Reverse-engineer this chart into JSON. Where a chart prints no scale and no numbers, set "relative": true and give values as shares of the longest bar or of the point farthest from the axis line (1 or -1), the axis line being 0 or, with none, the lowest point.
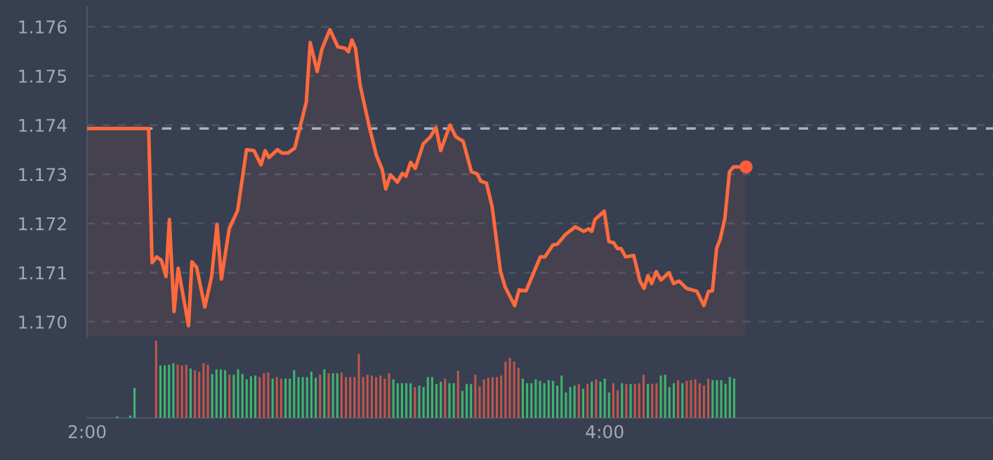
{
  "chart_data": [
    {
      "type": "area",
      "xlim": [
        2,
        5.5
      ],
      "ylim": [
        1.1697,
        1.1764
      ],
      "yticks": [
        {
          "value": 1.17,
          "label": "1.170"
        },
        1.171,
        1.172,
        1.173,
        1.174,
        1.175,
        1.176
      ],
      "tick_labels": "y",
      "grid": "y",
      "line_style": "solid",
      "ref_lines": [
        {
          "axis": "y",
          "value": 1.17393,
          "color": "#a9b1bd",
          "line_style": "dashed"
        }
      ],
      "series": [
        {
          "type": "area",
          "color": "#ff6a3d",
          "x": [
            2.005,
            2.238,
            2.251,
            2.269,
            2.287,
            2.305,
            2.318,
            2.336,
            2.352,
            2.374,
            2.392,
            2.405,
            2.423,
            2.455,
            2.481,
            2.502,
            2.519,
            2.549,
            2.582,
            2.616,
            2.645,
            2.672,
            2.688,
            2.703,
            2.736,
            2.753,
            2.775,
            2.802,
            2.847,
            2.862,
            2.889,
            2.907,
            2.938,
            2.969,
            2.997,
            3.01,
            3.023,
            3.037,
            3.055,
            3.091,
            3.118,
            3.14,
            3.154,
            3.172,
            3.199,
            3.218,
            3.232,
            3.25,
            3.268,
            3.299,
            3.326,
            3.348,
            3.366,
            3.402,
            3.425,
            3.453,
            3.485,
            3.507,
            3.521,
            3.543,
            3.565,
            3.597,
            3.615,
            3.652,
            3.669,
            3.696,
            3.751,
            3.769,
            3.799,
            3.817,
            3.847,
            3.886,
            3.919,
            3.937,
            3.95,
            3.962,
            3.998,
            4.016,
            4.034,
            4.049,
            4.063,
            4.081,
            4.112,
            4.136,
            4.152,
            4.167,
            4.181,
            4.199,
            4.217,
            4.248,
            4.266,
            4.287,
            4.316,
            4.356,
            4.383,
            4.401,
            4.416,
            4.432,
            4.446,
            4.464,
            4.482,
            4.497,
            4.546
          ],
          "values": [
            1.17393,
            1.17393,
            1.1712,
            1.17132,
            1.17125,
            1.17092,
            1.17208,
            1.17021,
            1.17109,
            1.17045,
            1.16992,
            1.17122,
            1.17111,
            1.1703,
            1.17092,
            1.17198,
            1.17087,
            1.17189,
            1.17227,
            1.1735,
            1.17348,
            1.17319,
            1.17348,
            1.17334,
            1.1735,
            1.17343,
            1.17343,
            1.17353,
            1.17447,
            1.17568,
            1.17509,
            1.17554,
            1.17594,
            1.17559,
            1.17556,
            1.17549,
            1.17573,
            1.17556,
            1.17481,
            1.17395,
            1.17338,
            1.1731,
            1.1727,
            1.17299,
            1.17284,
            1.17302,
            1.17296,
            1.17324,
            1.17312,
            1.17362,
            1.17376,
            1.17395,
            1.17348,
            1.174,
            1.17376,
            1.17367,
            1.17305,
            1.17301,
            1.17286,
            1.17282,
            1.17234,
            1.17103,
            1.17071,
            1.17033,
            1.17065,
            1.17063,
            1.17132,
            1.17132,
            1.17156,
            1.17158,
            1.17177,
            1.17193,
            1.17184,
            1.17189,
            1.17184,
            1.17208,
            1.17225,
            1.17163,
            1.17161,
            1.17149,
            1.17149,
            1.17132,
            1.17135,
            1.17083,
            1.17068,
            1.17094,
            1.17078,
            1.17102,
            1.17085,
            1.171,
            1.17078,
            1.17083,
            1.17068,
            1.17062,
            1.17033,
            1.17062,
            1.17063,
            1.17149,
            1.17168,
            1.1721,
            1.17305,
            1.17315,
            1.17315
          ]
        },
        {
          "type": "scatter",
          "color": "#ff5c3c",
          "marker": "circle",
          "x": [
            4.546
          ],
          "values": [
            1.17315
          ]
        }
      ]
    },
    {
      "type": "bar",
      "relative": true,
      "xlim": [
        2,
        5.5
      ],
      "xticks": [
        {
          "value": 2,
          "label": "2:00"
        },
        {
          "value": 4,
          "label": "4:00"
        }
      ],
      "tick_labels": "x",
      "grid": false,
      "x": [
        2.1167,
        2.1667,
        2.1833,
        2.2667,
        2.2833,
        2.3,
        2.3167,
        2.3333,
        2.35,
        2.3667,
        2.3833,
        2.4,
        2.4167,
        2.4333,
        2.45,
        2.4667,
        2.4833,
        2.5,
        2.5167,
        2.5333,
        2.55,
        2.5667,
        2.5833,
        2.6,
        2.6167,
        2.6333,
        2.65,
        2.6667,
        2.6833,
        2.7,
        2.7167,
        2.7333,
        2.75,
        2.7667,
        2.7833,
        2.8,
        2.8167,
        2.8333,
        2.85,
        2.8667,
        2.8833,
        2.9,
        2.9167,
        2.9333,
        2.95,
        2.9667,
        2.9833,
        3,
        3.0167,
        3.0333,
        3.05,
        3.0667,
        3.0833,
        3.1,
        3.1167,
        3.1333,
        3.15,
        3.1667,
        3.1833,
        3.2,
        3.2167,
        3.2333,
        3.25,
        3.2667,
        3.2833,
        3.3,
        3.3167,
        3.3333,
        3.35,
        3.3667,
        3.3833,
        3.4,
        3.4167,
        3.4333,
        3.45,
        3.4667,
        3.4833,
        3.5,
        3.5167,
        3.5333,
        3.55,
        3.5667,
        3.5833,
        3.6,
        3.6167,
        3.6333,
        3.65,
        3.6667,
        3.6833,
        3.7,
        3.7167,
        3.7333,
        3.75,
        3.7667,
        3.7833,
        3.8,
        3.8167,
        3.8333,
        3.85,
        3.8667,
        3.8833,
        3.9,
        3.9167,
        3.9333,
        3.95,
        3.9667,
        3.9833,
        4,
        4.0167,
        4.0333,
        4.05,
        4.0667,
        4.0833,
        4.1,
        4.1167,
        4.1333,
        4.15,
        4.1667,
        4.1833,
        4.2,
        4.2167,
        4.2333,
        4.25,
        4.2667,
        4.2833,
        4.3,
        4.3167,
        4.3333,
        4.35,
        4.3667,
        4.3833,
        4.4,
        4.4167,
        4.4333,
        4.45,
        4.4667,
        4.4833,
        4.5
      ],
      "values": [
        0.02,
        0.03,
        0.39,
        1.0,
        0.68,
        0.68,
        0.69,
        0.71,
        0.69,
        0.68,
        0.69,
        0.64,
        0.62,
        0.6,
        0.71,
        0.69,
        0.57,
        0.63,
        0.63,
        0.62,
        0.56,
        0.56,
        0.63,
        0.57,
        0.5,
        0.54,
        0.55,
        0.53,
        0.58,
        0.59,
        0.51,
        0.53,
        0.51,
        0.51,
        0.51,
        0.62,
        0.53,
        0.53,
        0.53,
        0.6,
        0.52,
        0.56,
        0.63,
        0.58,
        0.58,
        0.58,
        0.59,
        0.53,
        0.53,
        0.53,
        0.83,
        0.53,
        0.56,
        0.55,
        0.53,
        0.55,
        0.51,
        0.58,
        0.5,
        0.45,
        0.45,
        0.45,
        0.45,
        0.4,
        0.42,
        0.4,
        0.53,
        0.53,
        0.44,
        0.47,
        0.51,
        0.45,
        0.45,
        0.61,
        0.35,
        0.44,
        0.44,
        0.56,
        0.41,
        0.5,
        0.52,
        0.53,
        0.53,
        0.55,
        0.73,
        0.78,
        0.73,
        0.65,
        0.51,
        0.45,
        0.45,
        0.5,
        0.48,
        0.45,
        0.49,
        0.48,
        0.42,
        0.55,
        0.33,
        0.4,
        0.42,
        0.44,
        0.38,
        0.44,
        0.47,
        0.5,
        0.47,
        0.51,
        0.33,
        0.45,
        0.36,
        0.45,
        0.44,
        0.44,
        0.44,
        0.45,
        0.56,
        0.44,
        0.44,
        0.45,
        0.55,
        0.56,
        0.4,
        0.45,
        0.49,
        0.45,
        0.48,
        0.49,
        0.5,
        0.45,
        0.42,
        0.51,
        0.49,
        0.49,
        0.49,
        0.44,
        0.53,
        0.51
      ],
      "colors": [
        "#3fb56f",
        "#3fb56f",
        "#3fb56f",
        "#c2564c",
        "#3fb56f",
        "#3fb56f",
        "#3fb56f",
        "#3fb56f",
        "#c2564c",
        "#c2564c",
        "#c2564c",
        "#3fb56f",
        "#c2564c",
        "#c2564c",
        "#c2564c",
        "#c2564c",
        "#3fb56f",
        "#3fb56f",
        "#3fb56f",
        "#3fb56f",
        "#c2564c",
        "#3fb56f",
        "#3fb56f",
        "#3fb56f",
        "#3fb56f",
        "#3fb56f",
        "#3fb56f",
        "#c2564c",
        "#c2564c",
        "#c2564c",
        "#3fb56f",
        "#c2564c",
        "#c2564c",
        "#3fb56f",
        "#3fb56f",
        "#3fb56f",
        "#3fb56f",
        "#3fb56f",
        "#3fb56f",
        "#3fb56f",
        "#3fb56f",
        "#c2564c",
        "#3fb56f",
        "#c2564c",
        "#3fb56f",
        "#3fb56f",
        "#c2564c",
        "#c2564c",
        "#c2564c",
        "#c2564c",
        "#c2564c",
        "#c2564c",
        "#c2564c",
        "#c2564c",
        "#c2564c",
        "#c2564c",
        "#c2564c",
        "#c2564c",
        "#3fb56f",
        "#3fb56f",
        "#3fb56f",
        "#3fb56f",
        "#3fb56f",
        "#c2564c",
        "#3fb56f",
        "#3fb56f",
        "#3fb56f",
        "#3fb56f",
        "#3fb56f",
        "#3fb56f",
        "#c2564c",
        "#3fb56f",
        "#3fb56f",
        "#c2564c",
        "#3fb56f",
        "#3fb56f",
        "#3fb56f",
        "#c2564c",
        "#c2564c",
        "#c2564c",
        "#c2564c",
        "#c2564c",
        "#c2564c",
        "#c2564c",
        "#c2564c",
        "#c2564c",
        "#c2564c",
        "#c2564c",
        "#3fb56f",
        "#3fb56f",
        "#3fb56f",
        "#3fb56f",
        "#3fb56f",
        "#3fb56f",
        "#3fb56f",
        "#3fb56f",
        "#3fb56f",
        "#3fb56f",
        "#3fb56f",
        "#3fb56f",
        "#3fb56f",
        "#c2564c",
        "#3fb56f",
        "#c2564c",
        "#3fb56f",
        "#c2564c",
        "#3fb56f",
        "#3fb56f",
        "#3fb56f",
        "#c2564c",
        "#c2564c",
        "#3fb56f",
        "#c2564c",
        "#3fb56f",
        "#c2564c",
        "#c2564c",
        "#c2564c",
        "#3fb56f",
        "#c2564c",
        "#c2564c",
        "#3fb56f",
        "#3fb56f",
        "#3fb56f",
        "#3fb56f",
        "#c2564c",
        "#3fb56f",
        "#c2564c",
        "#c2564c",
        "#c2564c",
        "#c2564c",
        "#c2564c",
        "#c2564c",
        "#3fb56f",
        "#3fb56f",
        "#3fb56f",
        "#3fb56f",
        "#3fb56f",
        "#3fb56f"
      ]
    }
  ]
}
